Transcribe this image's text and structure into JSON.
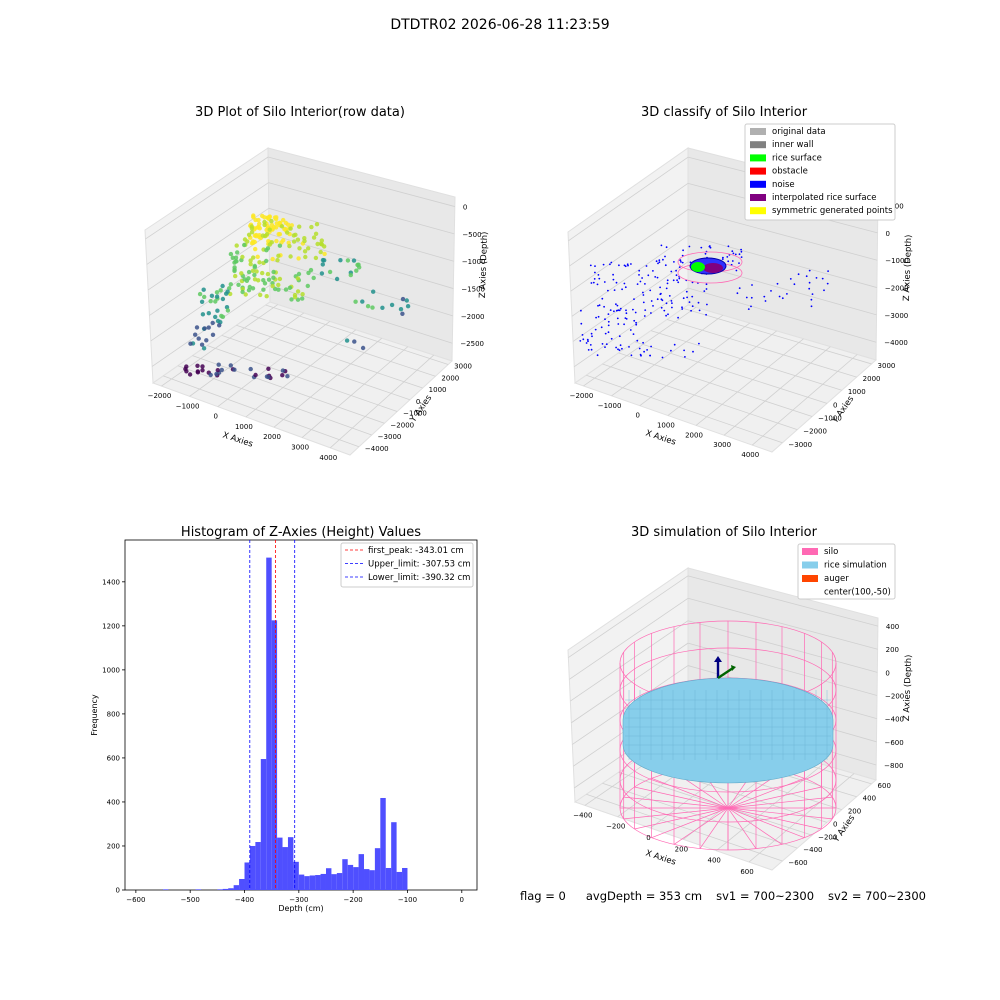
{
  "suptitle": "DTDTR02 2026-06-28 11:23:59",
  "panels": {
    "raw": {
      "title": "3D Plot of Silo Interior(row data)",
      "xlabel": "X Axies",
      "ylabel": "Y Axies",
      "zlabel": "Z Axies (Depth)",
      "xticks": [
        "−2000",
        "−1000",
        "0",
        "1000",
        "2000",
        "3000",
        "4000"
      ],
      "yticks": [
        "3000",
        "2000",
        "1000",
        "0",
        "−1000",
        "−2000",
        "−3000",
        "−4000"
      ],
      "zticks": [
        "0",
        "−500",
        "−1000",
        "−1500",
        "−2000",
        "−2500"
      ]
    },
    "classify": {
      "title": "3D classify of Silo Interior",
      "xlabel": "X Axies",
      "ylabel": "Y Axies",
      "zlabel": "Z Axies (Depth)",
      "xticks": [
        "−2000",
        "−1000",
        "0",
        "1000",
        "2000",
        "3000",
        "4000"
      ],
      "yticks": [
        "3000",
        "2000",
        "1000",
        "0",
        "−1000",
        "−2000",
        "−3000"
      ],
      "zticks": [
        "1000",
        "0",
        "−1000",
        "−2000",
        "−3000",
        "−4000"
      ],
      "legend": [
        {
          "label": "original data",
          "color": "#b0b0b0"
        },
        {
          "label": "inner wall",
          "color": "#808080"
        },
        {
          "label": "rice surface",
          "color": "#00ff00"
        },
        {
          "label": "obstacle",
          "color": "#ff0000"
        },
        {
          "label": "noise",
          "color": "#0000ff"
        },
        {
          "label": "interpolated rice surface",
          "color": "#800080"
        },
        {
          "label": "symmetric generated points",
          "color": "#ffff00"
        }
      ]
    },
    "simulation": {
      "title": "3D simulation of Silo Interior",
      "xlabel": "X Axies",
      "ylabel": "Y Axies",
      "zlabel": "Z Axies (Depth)",
      "xticks": [
        "−400",
        "−200",
        "0",
        "200",
        "400",
        "600"
      ],
      "yticks": [
        "600",
        "400",
        "200",
        "0",
        "−200",
        "−400",
        "−600"
      ],
      "zticks": [
        "400",
        "200",
        "0",
        "−200",
        "−400",
        "−600",
        "−800"
      ],
      "legend": [
        {
          "label": "silo",
          "color": "#ff69b4"
        },
        {
          "label": "rice simulation",
          "color": "#87ceeb"
        },
        {
          "label": "auger",
          "color": "#ff4500"
        },
        {
          "label": "center(100,-50)",
          "color": ""
        }
      ]
    }
  },
  "chart_data": {
    "type": "bar",
    "title": "Histogram of Z-Axies (Height) Values",
    "xlabel": "Depth (cm)",
    "ylabel": "Frequency",
    "xlim": [
      -620,
      28
    ],
    "ylim": [
      0,
      1590
    ],
    "xticks": [
      -600,
      -500,
      -400,
      -300,
      -200,
      -100,
      0
    ],
    "yticks": [
      0,
      200,
      400,
      600,
      800,
      1000,
      1200,
      1400
    ],
    "bar_color": "#4f4fff",
    "bins": [
      {
        "x0": -550,
        "x1": -540,
        "count": 3
      },
      {
        "x0": -490,
        "x1": -480,
        "count": 3
      },
      {
        "x0": -450,
        "x1": -440,
        "count": 3
      },
      {
        "x0": -440,
        "x1": -430,
        "count": 5
      },
      {
        "x0": -430,
        "x1": -420,
        "count": 8
      },
      {
        "x0": -420,
        "x1": -410,
        "count": 22
      },
      {
        "x0": -410,
        "x1": -400,
        "count": 50
      },
      {
        "x0": -400,
        "x1": -390,
        "count": 125
      },
      {
        "x0": -390,
        "x1": -380,
        "count": 200
      },
      {
        "x0": -380,
        "x1": -370,
        "count": 218
      },
      {
        "x0": -370,
        "x1": -360,
        "count": 595
      },
      {
        "x0": -360,
        "x1": -350,
        "count": 1510
      },
      {
        "x0": -350,
        "x1": -340,
        "count": 1225
      },
      {
        "x0": -340,
        "x1": -330,
        "count": 238
      },
      {
        "x0": -330,
        "x1": -320,
        "count": 195
      },
      {
        "x0": -320,
        "x1": -310,
        "count": 240
      },
      {
        "x0": -310,
        "x1": -300,
        "count": 128
      },
      {
        "x0": -300,
        "x1": -290,
        "count": 70
      },
      {
        "x0": -290,
        "x1": -280,
        "count": 63
      },
      {
        "x0": -280,
        "x1": -270,
        "count": 66
      },
      {
        "x0": -270,
        "x1": -260,
        "count": 68
      },
      {
        "x0": -260,
        "x1": -250,
        "count": 73
      },
      {
        "x0": -250,
        "x1": -240,
        "count": 99
      },
      {
        "x0": -240,
        "x1": -230,
        "count": 72
      },
      {
        "x0": -230,
        "x1": -220,
        "count": 77
      },
      {
        "x0": -220,
        "x1": -210,
        "count": 140
      },
      {
        "x0": -210,
        "x1": -200,
        "count": 114
      },
      {
        "x0": -200,
        "x1": -190,
        "count": 104
      },
      {
        "x0": -190,
        "x1": -180,
        "count": 163
      },
      {
        "x0": -180,
        "x1": -170,
        "count": 95
      },
      {
        "x0": -170,
        "x1": -160,
        "count": 90
      },
      {
        "x0": -160,
        "x1": -150,
        "count": 190
      },
      {
        "x0": -150,
        "x1": -140,
        "count": 418
      },
      {
        "x0": -140,
        "x1": -130,
        "count": 100
      },
      {
        "x0": -130,
        "x1": -120,
        "count": 308
      },
      {
        "x0": -120,
        "x1": -110,
        "count": 82
      },
      {
        "x0": -110,
        "x1": -100,
        "count": 100
      }
    ],
    "vlines": [
      {
        "x": -343.01,
        "color": "#ff0000",
        "label": "first_peak: -343.01 cm"
      },
      {
        "x": -307.53,
        "color": "#0000ff",
        "label": "Upper_limit: -307.53 cm"
      },
      {
        "x": -390.32,
        "color": "#0000ff",
        "label": "Lower_limit: -390.32 cm"
      }
    ]
  },
  "footer": {
    "flag": "flag = 0",
    "avg": "avgDepth = 353 cm",
    "sv1": "sv1 = 700~2300",
    "sv2": "sv2 = 700~2300"
  }
}
